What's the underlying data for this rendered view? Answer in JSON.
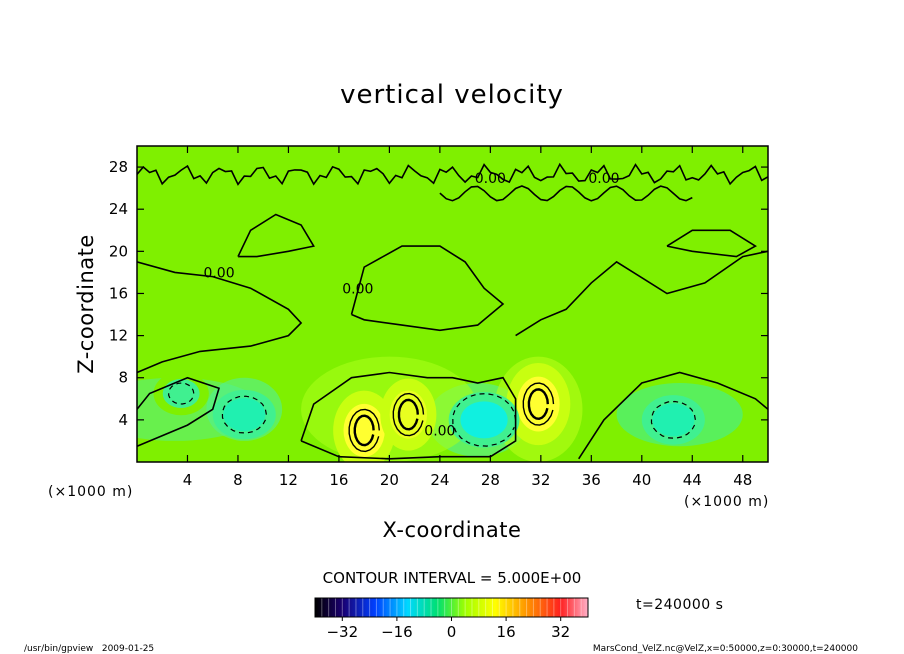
{
  "chart_data": {
    "type": "heatmap",
    "title": "vertical velocity",
    "xlabel": "X-coordinate",
    "ylabel": "Z-coordinate",
    "x_unit_label": "(×1000 m)",
    "y_unit_label": "(×1000 m)",
    "xlim": [
      0,
      50
    ],
    "ylim": [
      0,
      30
    ],
    "x_ticks": [
      4,
      8,
      12,
      16,
      20,
      24,
      28,
      32,
      36,
      40,
      44,
      48
    ],
    "y_ticks": [
      4,
      8,
      12,
      16,
      20,
      24,
      28
    ],
    "contour_interval_label": "CONTOUR INTERVAL = 5.000E+00",
    "contour_labels": [
      {
        "text": "0.00",
        "x": 6.5,
        "y": 17.5
      },
      {
        "text": "0.00",
        "x": 17.5,
        "y": 16.0
      },
      {
        "text": "0.00",
        "x": 28.0,
        "y": 26.5
      },
      {
        "text": "0.00",
        "x": 37.0,
        "y": 26.5
      },
      {
        "text": "0.00",
        "x": 24.0,
        "y": 2.5
      }
    ],
    "features": [
      {
        "kind": "updraft",
        "x": 18.0,
        "y": 3.0,
        "value": 14
      },
      {
        "kind": "updraft",
        "x": 21.5,
        "y": 4.5,
        "value": 11
      },
      {
        "kind": "updraft",
        "x": 31.8,
        "y": 5.5,
        "value": 15
      },
      {
        "kind": "downdraft",
        "x": 27.5,
        "y": 4.0,
        "value": -10
      },
      {
        "kind": "downdraft",
        "x": 8.5,
        "y": 4.5,
        "value": -7
      },
      {
        "kind": "downdraft",
        "x": 42.5,
        "y": 4.0,
        "value": -7
      },
      {
        "kind": "downdraft",
        "x": 3.5,
        "y": 6.5,
        "value": -4
      }
    ],
    "colorbar": {
      "range": [
        -40,
        40
      ],
      "ticks": [
        -32,
        -16,
        0,
        16,
        32
      ],
      "tick_labels": [
        "−32",
        "−16",
        "0",
        "16",
        "32"
      ]
    },
    "time_label": "t=240000 s",
    "footer_left": "/usr/bin/gpview   2009-01-25",
    "footer_right": "MarsCond_VelZ.nc@VelZ,x=0:50000,z=0:30000,t=240000"
  }
}
